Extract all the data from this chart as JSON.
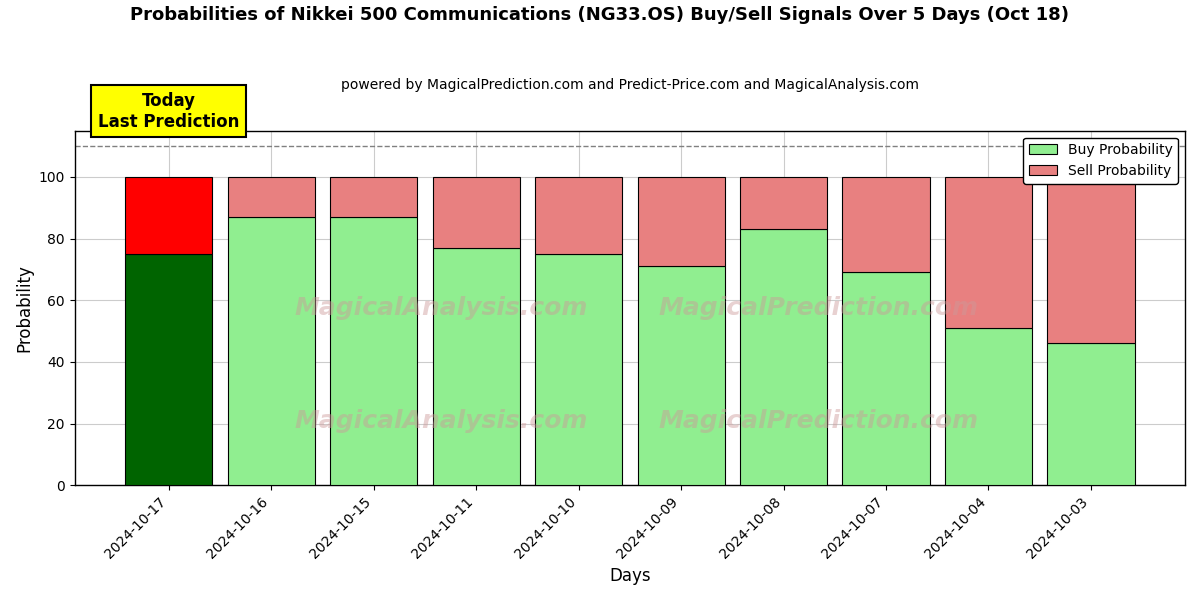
{
  "title": "Probabilities of Nikkei 500 Communications (NG33.OS) Buy/Sell Signals Over 5 Days (Oct 18)",
  "subtitle": "powered by MagicalPrediction.com and Predict-Price.com and MagicalAnalysis.com",
  "xlabel": "Days",
  "ylabel": "Probability",
  "dates": [
    "2024-10-17",
    "2024-10-16",
    "2024-10-15",
    "2024-10-11",
    "2024-10-10",
    "2024-10-09",
    "2024-10-08",
    "2024-10-07",
    "2024-10-04",
    "2024-10-03"
  ],
  "buy_probs": [
    75,
    87,
    87,
    77,
    75,
    71,
    83,
    69,
    51,
    46
  ],
  "sell_probs": [
    25,
    13,
    13,
    23,
    25,
    29,
    17,
    31,
    49,
    54
  ],
  "today_buy_color": "#006400",
  "today_sell_color": "#FF0000",
  "other_buy_color": "#90EE90",
  "other_sell_color": "#E88080",
  "today_annotation": "Today\nLast Prediction",
  "today_annotation_bg": "#FFFF00",
  "legend_buy_label": "Buy Probability",
  "legend_sell_label": "Sell Probability",
  "ylim": [
    0,
    115
  ],
  "yticks": [
    0,
    20,
    40,
    60,
    80,
    100
  ],
  "dashed_line_y": 110,
  "watermark_text1": "MagicalAnalysis.com",
  "watermark_text2": "MagicalPrediction.com",
  "background_color": "#ffffff",
  "grid_color": "#cccccc",
  "bar_width": 0.85
}
